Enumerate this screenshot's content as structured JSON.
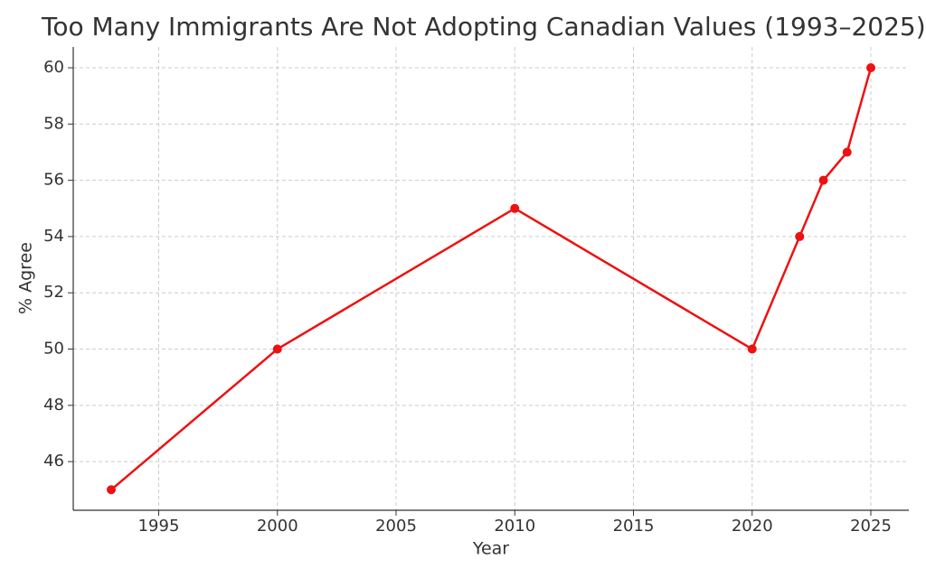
{
  "chart_data": {
    "type": "line",
    "title": "Too Many Immigrants Are Not Adopting Canadian Values (1993–2025)",
    "x_label": "Year",
    "y_label": "% Agree",
    "x": [
      1993,
      2000,
      2010,
      2020,
      2022,
      2023,
      2024,
      2025
    ],
    "series": [
      {
        "name": "% Agree",
        "color": "#ee1111",
        "values": [
          45,
          50,
          55,
          50,
          54,
          56,
          57,
          60
        ]
      }
    ],
    "xlim": [
      1991.4,
      2026.6
    ],
    "xticks": [
      1995,
      2000,
      2005,
      2010,
      2015,
      2020,
      2025
    ],
    "ylim": [
      44.27,
      60.74
    ],
    "yticks": [
      46,
      48,
      50,
      52,
      54,
      56,
      58,
      60
    ],
    "grid": true
  }
}
